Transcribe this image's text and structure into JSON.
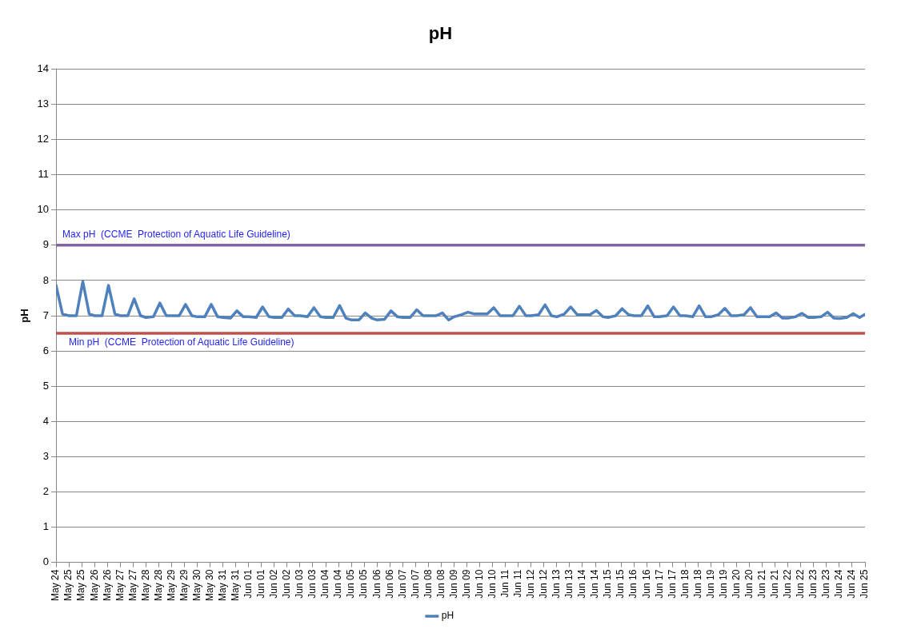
{
  "chart_data": {
    "type": "line",
    "title": "pH",
    "ylabel": "pH",
    "ylim": [
      0,
      14
    ],
    "yticks": [
      0,
      1,
      2,
      3,
      4,
      5,
      6,
      7,
      8,
      9,
      10,
      11,
      12,
      13,
      14
    ],
    "xlim": [
      "--05-24T12:00",
      "--06-25T00:00"
    ],
    "xticks": [
      {
        "value": "--05-24T12:00",
        "label": "May 24"
      },
      {
        "value": "--05-25T00:00",
        "label": "May 25"
      },
      {
        "value": "--05-25T12:00",
        "label": "May 25"
      },
      {
        "value": "--05-26T00:00",
        "label": "May 26"
      },
      {
        "value": "--05-26T12:00",
        "label": "May 26"
      },
      {
        "value": "--05-27T00:00",
        "label": "May 27"
      },
      {
        "value": "--05-27T12:00",
        "label": "May 27"
      },
      {
        "value": "--05-28T00:00",
        "label": "May 28"
      },
      {
        "value": "--05-28T12:00",
        "label": "May 28"
      },
      {
        "value": "--05-29T00:00",
        "label": "May 29"
      },
      {
        "value": "--05-29T12:00",
        "label": "May 29"
      },
      {
        "value": "--05-30T00:00",
        "label": "May 30"
      },
      {
        "value": "--05-30T12:00",
        "label": "May 30"
      },
      {
        "value": "--05-31T00:00",
        "label": "May 31"
      },
      {
        "value": "--05-31T12:00",
        "label": "May 31"
      },
      {
        "value": "--06-01T00:00",
        "label": "Jun 01"
      },
      {
        "value": "--06-01T12:00",
        "label": "Jun 01"
      },
      {
        "value": "--06-02T00:00",
        "label": "Jun 02"
      },
      {
        "value": "--06-02T12:00",
        "label": "Jun 02"
      },
      {
        "value": "--06-03T00:00",
        "label": "Jun 03"
      },
      {
        "value": "--06-03T12:00",
        "label": "Jun 03"
      },
      {
        "value": "--06-04T00:00",
        "label": "Jun 04"
      },
      {
        "value": "--06-04T12:00",
        "label": "Jun 04"
      },
      {
        "value": "--06-05T00:00",
        "label": "Jun 05"
      },
      {
        "value": "--06-05T12:00",
        "label": "Jun 05"
      },
      {
        "value": "--06-06T00:00",
        "label": "Jun 06"
      },
      {
        "value": "--06-06T12:00",
        "label": "Jun 06"
      },
      {
        "value": "--06-07T00:00",
        "label": "Jun 07"
      },
      {
        "value": "--06-07T12:00",
        "label": "Jun 07"
      },
      {
        "value": "--06-08T00:00",
        "label": "Jun 08"
      },
      {
        "value": "--06-08T12:00",
        "label": "Jun 08"
      },
      {
        "value": "--06-09T00:00",
        "label": "Jun 09"
      },
      {
        "value": "--06-09T12:00",
        "label": "Jun 09"
      },
      {
        "value": "--06-10T00:00",
        "label": "Jun 10"
      },
      {
        "value": "--06-10T12:00",
        "label": "Jun 10"
      },
      {
        "value": "--06-11T00:00",
        "label": "Jun 11"
      },
      {
        "value": "--06-11T12:00",
        "label": "Jun 11"
      },
      {
        "value": "--06-12T00:00",
        "label": "Jun 12"
      },
      {
        "value": "--06-12T12:00",
        "label": "Jun 12"
      },
      {
        "value": "--06-13T00:00",
        "label": "Jun 13"
      },
      {
        "value": "--06-13T12:00",
        "label": "Jun 13"
      },
      {
        "value": "--06-14T00:00",
        "label": "Jun 14"
      },
      {
        "value": "--06-14T12:00",
        "label": "Jun 14"
      },
      {
        "value": "--06-15T00:00",
        "label": "Jun 15"
      },
      {
        "value": "--06-15T12:00",
        "label": "Jun 15"
      },
      {
        "value": "--06-16T00:00",
        "label": "Jun 16"
      },
      {
        "value": "--06-16T12:00",
        "label": "Jun 16"
      },
      {
        "value": "--06-17T00:00",
        "label": "Jun 17"
      },
      {
        "value": "--06-17T12:00",
        "label": "Jun 17"
      },
      {
        "value": "--06-18T00:00",
        "label": "Jun 18"
      },
      {
        "value": "--06-18T12:00",
        "label": "Jun 18"
      },
      {
        "value": "--06-19T00:00",
        "label": "Jun 19"
      },
      {
        "value": "--06-19T12:00",
        "label": "Jun 19"
      },
      {
        "value": "--06-20T00:00",
        "label": "Jun 20"
      },
      {
        "value": "--06-20T12:00",
        "label": "Jun 20"
      },
      {
        "value": "--06-21T00:00",
        "label": "Jun 21"
      },
      {
        "value": "--06-21T12:00",
        "label": "Jun 21"
      },
      {
        "value": "--06-22T00:00",
        "label": "Jun 22"
      },
      {
        "value": "--06-22T12:00",
        "label": "Jun 22"
      },
      {
        "value": "--06-23T00:00",
        "label": "Jun 23"
      },
      {
        "value": "--06-23T12:00",
        "label": "Jun 23"
      },
      {
        "value": "--06-24T00:00",
        "label": "Jun 24"
      },
      {
        "value": "--06-24T12:00",
        "label": "Jun 24"
      },
      {
        "value": "--06-25T00:00",
        "label": "Jun 25"
      }
    ],
    "series": [
      {
        "name": "pH",
        "color": "#4f81bd",
        "x": [
          "--05-24T12:00",
          "--05-24T18:00",
          "--05-25T00:00",
          "--05-25T07:00",
          "--05-25T13:00",
          "--05-25T19:00",
          "--05-26T00:00",
          "--05-26T07:00",
          "--05-26T13:00",
          "--05-26T19:00",
          "--05-27T00:00",
          "--05-27T07:00",
          "--05-27T13:00",
          "--05-27T19:00",
          "--05-28T00:00",
          "--05-28T07:00",
          "--05-28T13:00",
          "--05-28T19:00",
          "--05-29T00:00",
          "--05-29T07:00",
          "--05-29T13:00",
          "--05-29T19:00",
          "--05-30T00:00",
          "--05-30T07:00",
          "--05-30T13:00",
          "--05-30T19:00",
          "--05-31T00:00",
          "--05-31T07:00",
          "--05-31T13:00",
          "--05-31T19:00",
          "--06-01T00:00",
          "--06-01T07:00",
          "--06-01T13:00",
          "--06-01T19:00",
          "--06-02T00:00",
          "--06-02T07:00",
          "--06-02T13:00",
          "--06-02T19:00",
          "--06-03T00:00",
          "--06-03T07:00",
          "--06-03T13:00",
          "--06-03T19:00",
          "--06-04T00:00",
          "--06-04T07:00",
          "--06-04T13:00",
          "--06-04T19:00",
          "--06-05T00:00",
          "--06-05T07:00",
          "--06-05T13:00",
          "--06-05T19:00",
          "--06-06T00:00",
          "--06-06T07:00",
          "--06-06T13:00",
          "--06-06T19:00",
          "--06-07T00:00",
          "--06-07T07:00",
          "--06-07T13:00",
          "--06-07T19:00",
          "--06-08T00:00",
          "--06-08T07:00",
          "--06-08T13:00",
          "--06-08T19:00",
          "--06-09T00:00",
          "--06-09T07:00",
          "--06-09T13:00",
          "--06-09T19:00",
          "--06-10T00:00",
          "--06-10T07:00",
          "--06-10T13:00",
          "--06-10T19:00",
          "--06-11T00:00",
          "--06-11T07:00",
          "--06-11T13:00",
          "--06-11T19:00",
          "--06-12T00:00",
          "--06-12T07:00",
          "--06-12T13:00",
          "--06-12T19:00",
          "--06-13T00:00",
          "--06-13T07:00",
          "--06-13T13:00",
          "--06-13T19:00",
          "--06-14T00:00",
          "--06-14T07:00",
          "--06-14T13:00",
          "--06-14T19:00",
          "--06-15T00:00",
          "--06-15T07:00",
          "--06-15T13:00",
          "--06-15T19:00",
          "--06-16T00:00",
          "--06-16T07:00",
          "--06-16T13:00",
          "--06-16T19:00",
          "--06-17T00:00",
          "--06-17T07:00",
          "--06-17T13:00",
          "--06-17T19:00",
          "--06-18T00:00",
          "--06-18T07:00",
          "--06-18T13:00",
          "--06-18T19:00",
          "--06-19T00:00",
          "--06-19T07:00",
          "--06-19T13:00",
          "--06-19T19:00",
          "--06-20T00:00",
          "--06-20T07:00",
          "--06-20T13:00",
          "--06-20T19:00",
          "--06-21T00:00",
          "--06-21T07:00",
          "--06-21T13:00",
          "--06-21T19:00",
          "--06-22T00:00",
          "--06-22T07:00",
          "--06-22T13:00",
          "--06-22T19:00",
          "--06-23T00:00",
          "--06-23T07:00",
          "--06-23T13:00",
          "--06-23T19:00",
          "--06-24T00:00",
          "--06-24T07:00",
          "--06-24T13:00",
          "--06-24T19:00",
          "--06-25T00:00"
        ],
        "values": [
          7.86,
          7.05,
          7.0,
          7.0,
          7.97,
          7.05,
          7.0,
          7.0,
          7.86,
          7.05,
          7.0,
          7.0,
          7.48,
          7.0,
          6.95,
          6.97,
          7.36,
          7.0,
          7.0,
          7.0,
          7.32,
          7.0,
          6.97,
          6.97,
          7.32,
          6.97,
          6.95,
          6.93,
          7.14,
          6.97,
          6.97,
          6.95,
          7.25,
          6.97,
          6.95,
          6.95,
          7.19,
          7.0,
          7.0,
          6.97,
          7.23,
          6.97,
          6.95,
          6.95,
          7.29,
          6.93,
          6.88,
          6.88,
          7.08,
          6.93,
          6.88,
          6.9,
          7.14,
          6.97,
          6.95,
          6.95,
          7.17,
          7.0,
          7.0,
          7.0,
          7.08,
          6.88,
          6.97,
          7.03,
          7.1,
          7.05,
          7.05,
          7.05,
          7.23,
          7.0,
          7.0,
          7.0,
          7.27,
          7.0,
          7.0,
          7.03,
          7.31,
          7.0,
          6.97,
          7.05,
          7.25,
          7.03,
          7.03,
          7.03,
          7.15,
          6.97,
          6.95,
          7.0,
          7.2,
          7.03,
          7.0,
          7.0,
          7.28,
          6.97,
          6.97,
          7.0,
          7.25,
          7.0,
          7.0,
          6.97,
          7.28,
          6.97,
          6.97,
          7.03,
          7.21,
          7.0,
          7.0,
          7.03,
          7.23,
          6.97,
          6.97,
          6.97,
          7.08,
          6.93,
          6.93,
          6.97,
          7.07,
          6.95,
          6.95,
          6.97,
          7.1,
          6.93,
          6.92,
          6.95,
          7.06,
          6.95,
          7.04
        ]
      }
    ],
    "ref_lines": [
      {
        "axis": "y",
        "value": 9,
        "label": "Max pH  (CCME  Protection of Aquatic Life Guideline)",
        "color": "#8064a2"
      },
      {
        "axis": "y",
        "value": 6.5,
        "label": "Min pH  (CCME  Protection of Aquatic Life Guideline)",
        "color": "#c0504d"
      }
    ],
    "grid": "y",
    "legend": "bottom",
    "marker": "none",
    "line_style": "solid"
  }
}
